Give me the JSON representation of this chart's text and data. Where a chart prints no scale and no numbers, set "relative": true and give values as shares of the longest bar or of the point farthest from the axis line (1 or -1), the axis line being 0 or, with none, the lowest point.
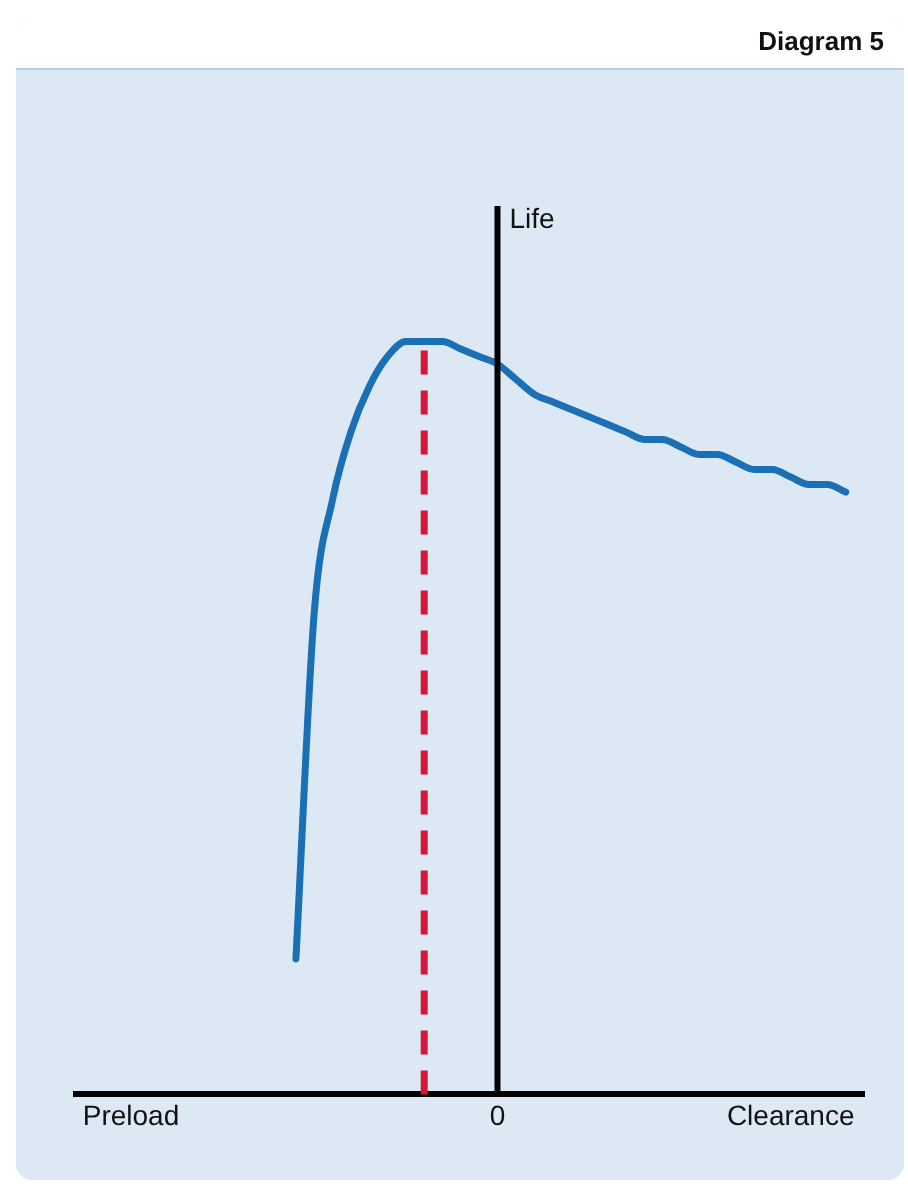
{
  "chart_data": {
    "type": "line",
    "title": "Diagram 5",
    "ylabel": "Life",
    "relative": true,
    "categories": [
      null,
      null,
      null,
      "Preload",
      null,
      null,
      null,
      null,
      null,
      null,
      null,
      null,
      null,
      null,
      null,
      null,
      null,
      null,
      null,
      null,
      null,
      null,
      null,
      "0",
      null,
      null,
      null,
      null,
      null,
      null,
      null,
      null,
      null,
      null,
      null,
      null,
      null,
      null,
      null,
      "Clearance",
      null,
      null,
      null,
      null
    ],
    "series": [
      {
        "color": "#1a6fb5",
        "values": [
          null,
          null,
          null,
          null,
          null,
          null,
          null,
          null,
          null,
          null,
          null,
          null,
          0.18,
          0.64,
          0.79,
          0.88,
          0.94,
          0.98,
          1.0,
          1.0,
          1.0,
          0.99,
          0.98,
          0.97,
          0.95,
          0.93,
          0.92,
          0.91,
          0.9,
          0.89,
          0.88,
          0.87,
          0.87,
          0.86,
          0.85,
          0.85,
          0.84,
          0.83,
          0.83,
          0.82,
          0.81,
          0.81,
          0.8,
          null
        ]
      }
    ],
    "grid": false,
    "legend": false,
    "marker": "none",
    "line_style": "solid"
  }
}
